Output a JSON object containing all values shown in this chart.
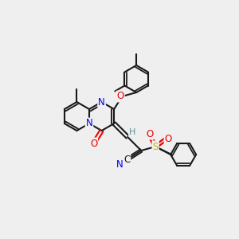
{
  "background_color": "#efefef",
  "bond_color": "#1a1a1a",
  "atom_colors": {
    "N": "#0000ee",
    "O": "#ee0000",
    "S": "#bbbb00",
    "C": "#1a1a1a",
    "H": "#5a9090"
  },
  "figsize": [
    3.0,
    3.0
  ],
  "dpi": 100
}
